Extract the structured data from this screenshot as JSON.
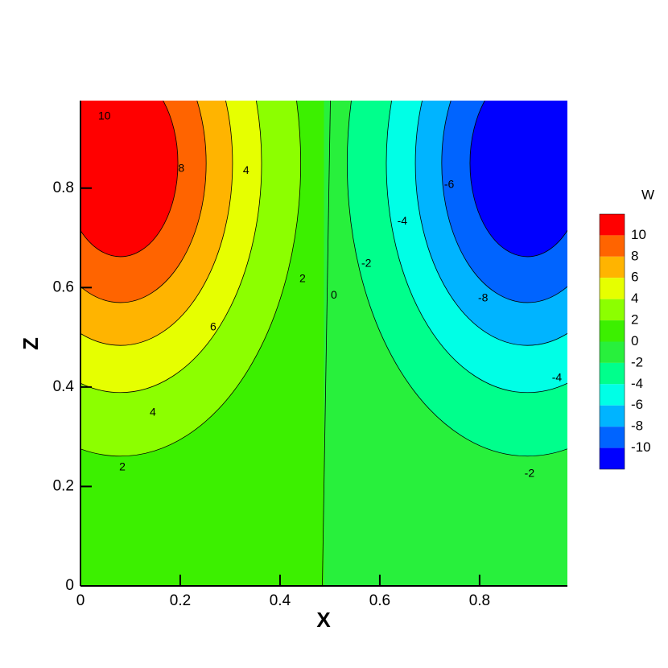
{
  "chart_data": {
    "type": "contour",
    "xlabel": "X",
    "ylabel": "Z",
    "xlim": [
      0,
      0.976
    ],
    "ylim": [
      0,
      0.976
    ],
    "xticks": [
      0,
      0.2,
      0.4,
      0.6,
      0.8
    ],
    "yticks": [
      0,
      0.2,
      0.4,
      0.6,
      0.8
    ],
    "legend_title": "W",
    "levels": [
      10,
      8,
      6,
      4,
      2,
      0,
      -2,
      -4,
      -6,
      -8,
      -10
    ],
    "colors": [
      "#ff0000",
      "#ff6400",
      "#ffb400",
      "#e6ff00",
      "#8cff00",
      "#3cf000",
      "#28f03c",
      "#00ff8c",
      "#00ffe6",
      "#00b4ff",
      "#0064ff",
      "#0000ff"
    ],
    "contour_labels": [
      {
        "x": 0.048,
        "z": 0.944,
        "value": 10
      },
      {
        "x": 0.202,
        "z": 0.839,
        "value": 8
      },
      {
        "x": 0.332,
        "z": 0.835,
        "value": 4
      },
      {
        "x": 0.445,
        "z": 0.617,
        "value": 2
      },
      {
        "x": 0.508,
        "z": 0.584,
        "value": 0
      },
      {
        "x": 0.573,
        "z": 0.648,
        "value": -2
      },
      {
        "x": 0.645,
        "z": 0.733,
        "value": -4
      },
      {
        "x": 0.739,
        "z": 0.806,
        "value": -6
      },
      {
        "x": 0.807,
        "z": 0.578,
        "value": -8
      },
      {
        "x": 0.266,
        "z": 0.52,
        "value": 6
      },
      {
        "x": 0.955,
        "z": 0.418,
        "value": -4
      },
      {
        "x": 0.145,
        "z": 0.348,
        "value": 4
      },
      {
        "x": 0.084,
        "z": 0.238,
        "value": 2
      },
      {
        "x": 0.9,
        "z": 0.225,
        "value": -2
      }
    ]
  }
}
